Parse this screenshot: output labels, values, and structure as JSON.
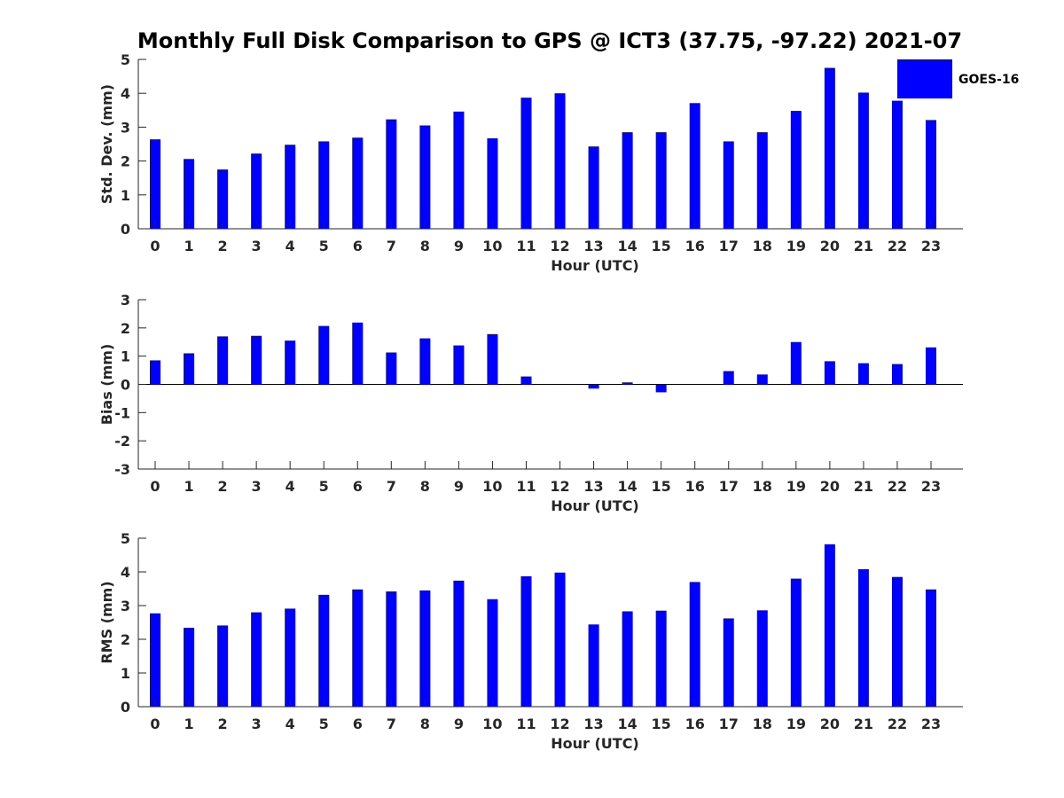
{
  "figure": {
    "title": "Monthly Full Disk Comparison to GPS @ ICT3 (37.75, -97.22) 2021-07",
    "legend": {
      "label": "GOES-16",
      "color": "#0000ff",
      "placement": "top-right"
    }
  },
  "chart_data": [
    {
      "type": "bar",
      "xlabel": "Hour (UTC)",
      "ylabel": "Std. Dev. (mm)",
      "ylim": [
        0,
        5
      ],
      "yticks": [
        0,
        1,
        2,
        3,
        4,
        5
      ],
      "categories": [
        "0",
        "1",
        "2",
        "3",
        "4",
        "5",
        "6",
        "7",
        "8",
        "9",
        "10",
        "11",
        "12",
        "13",
        "14",
        "15",
        "16",
        "17",
        "18",
        "19",
        "20",
        "21",
        "22",
        "23"
      ],
      "series": [
        {
          "name": "GOES-16",
          "color": "#0000ff",
          "values": [
            2.64,
            2.06,
            1.75,
            2.22,
            2.48,
            2.58,
            2.69,
            3.23,
            3.05,
            3.46,
            2.67,
            3.87,
            4.0,
            2.43,
            2.85,
            2.85,
            3.71,
            2.58,
            2.85,
            3.48,
            4.75,
            4.02,
            3.78,
            3.21
          ]
        }
      ]
    },
    {
      "type": "bar",
      "xlabel": "Hour (UTC)",
      "ylabel": "Bias (mm)",
      "ylim": [
        -3,
        3
      ],
      "yticks": [
        -3,
        -2,
        -1,
        0,
        1,
        2,
        3
      ],
      "categories": [
        "0",
        "1",
        "2",
        "3",
        "4",
        "5",
        "6",
        "7",
        "8",
        "9",
        "10",
        "11",
        "12",
        "13",
        "14",
        "15",
        "16",
        "17",
        "18",
        "19",
        "20",
        "21",
        "22",
        "23"
      ],
      "series": [
        {
          "name": "GOES-16",
          "color": "#0000ff",
          "values": [
            0.85,
            1.1,
            1.7,
            1.72,
            1.55,
            2.07,
            2.19,
            1.13,
            1.63,
            1.38,
            1.78,
            0.28,
            0.0,
            -0.15,
            0.07,
            -0.28,
            0.0,
            0.47,
            0.35,
            1.5,
            0.82,
            0.75,
            0.72,
            1.31
          ]
        }
      ]
    },
    {
      "type": "bar",
      "xlabel": "Hour (UTC)",
      "ylabel": "RMS (mm)",
      "ylim": [
        0,
        5
      ],
      "yticks": [
        0,
        1,
        2,
        3,
        4,
        5
      ],
      "categories": [
        "0",
        "1",
        "2",
        "3",
        "4",
        "5",
        "6",
        "7",
        "8",
        "9",
        "10",
        "11",
        "12",
        "13",
        "14",
        "15",
        "16",
        "17",
        "18",
        "19",
        "20",
        "21",
        "22",
        "23"
      ],
      "series": [
        {
          "name": "GOES-16",
          "color": "#0000ff",
          "values": [
            2.77,
            2.34,
            2.41,
            2.8,
            2.91,
            3.32,
            3.48,
            3.42,
            3.45,
            3.74,
            3.19,
            3.87,
            3.98,
            2.44,
            2.83,
            2.85,
            3.7,
            2.62,
            2.86,
            3.8,
            4.82,
            4.08,
            3.85,
            3.48
          ]
        }
      ]
    }
  ]
}
